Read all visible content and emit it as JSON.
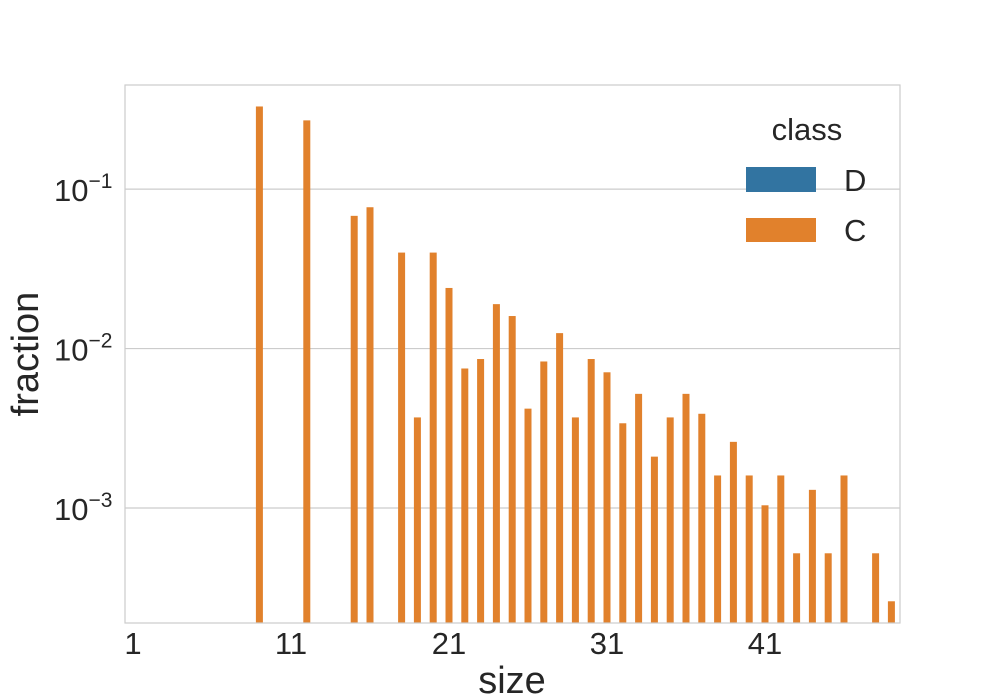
{
  "chart_data": {
    "type": "bar",
    "xlabel": "size",
    "ylabel": "fraction",
    "yscale": "log",
    "ylim": [
      0.00019,
      0.45
    ],
    "xlim": [
      1,
      50
    ],
    "grid": "horizontal",
    "legend": {
      "title": "class",
      "placement": "top-right",
      "entries": [
        {
          "name": "D",
          "color": "#3274a1"
        },
        {
          "name": "C",
          "color": "#e1812c"
        }
      ]
    },
    "x_ticks": [
      {
        "label": "1",
        "value": 1
      },
      {
        "label": "11",
        "value": 11
      },
      {
        "label": "21",
        "value": 21
      },
      {
        "label": "31",
        "value": 31
      },
      {
        "label": "41",
        "value": 41
      }
    ],
    "y_ticks": [
      {
        "base": "10",
        "exp": "−1",
        "value": 0.1
      },
      {
        "base": "10",
        "exp": "−2",
        "value": 0.01
      },
      {
        "base": "10",
        "exp": "−3",
        "value": 0.001
      }
    ],
    "series": [
      {
        "name": "D",
        "color": "#3274a1",
        "points": []
      },
      {
        "name": "C",
        "color": "#e1812c",
        "points": [
          {
            "x": 9,
            "y": 0.33
          },
          {
            "x": 12,
            "y": 0.27
          },
          {
            "x": 15,
            "y": 0.068
          },
          {
            "x": 16,
            "y": 0.077
          },
          {
            "x": 18,
            "y": 0.04
          },
          {
            "x": 19,
            "y": 0.0037
          },
          {
            "x": 20,
            "y": 0.04
          },
          {
            "x": 21,
            "y": 0.024
          },
          {
            "x": 22,
            "y": 0.0075
          },
          {
            "x": 23,
            "y": 0.0086
          },
          {
            "x": 24,
            "y": 0.019
          },
          {
            "x": 25,
            "y": 0.016
          },
          {
            "x": 26,
            "y": 0.0042
          },
          {
            "x": 27,
            "y": 0.0083
          },
          {
            "x": 28,
            "y": 0.0125
          },
          {
            "x": 29,
            "y": 0.0037
          },
          {
            "x": 30,
            "y": 0.0086
          },
          {
            "x": 31,
            "y": 0.0071
          },
          {
            "x": 32,
            "y": 0.0034
          },
          {
            "x": 33,
            "y": 0.0052
          },
          {
            "x": 34,
            "y": 0.0021
          },
          {
            "x": 35,
            "y": 0.0037
          },
          {
            "x": 36,
            "y": 0.0052
          },
          {
            "x": 37,
            "y": 0.0039
          },
          {
            "x": 38,
            "y": 0.0016
          },
          {
            "x": 39,
            "y": 0.0026
          },
          {
            "x": 40,
            "y": 0.0016
          },
          {
            "x": 41,
            "y": 0.00104
          },
          {
            "x": 42,
            "y": 0.0016
          },
          {
            "x": 43,
            "y": 0.00052
          },
          {
            "x": 44,
            "y": 0.0013
          },
          {
            "x": 45,
            "y": 0.00052
          },
          {
            "x": 46,
            "y": 0.0016
          },
          {
            "x": 48,
            "y": 0.00052
          },
          {
            "x": 49,
            "y": 0.00026
          }
        ]
      }
    ]
  }
}
